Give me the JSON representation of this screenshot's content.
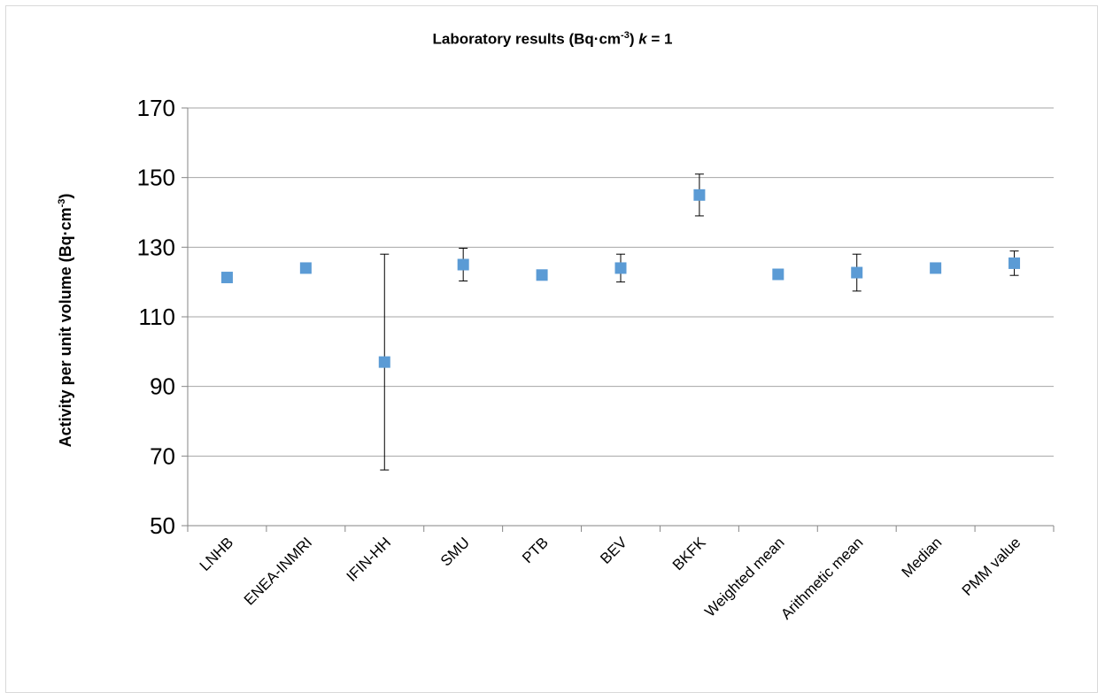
{
  "chart_data": {
    "type": "scatter",
    "title_main": "Laboratory results (Bq·cm",
    "title_sup": "-3",
    "title_after": ")  ",
    "title_k": "k",
    "title_end": " = 1",
    "ylabel_main": "Activity  per unit volume  (Bq·cm",
    "ylabel_sup": "-3",
    "ylabel_end": ")",
    "ylim": [
      50,
      170
    ],
    "yticks": [
      50,
      70,
      90,
      110,
      130,
      150,
      170
    ],
    "grid": true,
    "marker_color": "#5b9bd5",
    "categories": [
      "LNHB",
      "ENEA-INMRI",
      "IFIN-HH",
      "SMU",
      "PTB",
      "BEV",
      "BKFK",
      "Weighted mean",
      "Arithmetic mean",
      "Median",
      "PMM value"
    ],
    "values": [
      121.3,
      124.0,
      97.0,
      125.0,
      122.0,
      124.0,
      145.0,
      122.2,
      122.7,
      124.0,
      125.4
    ],
    "errors": [
      0.5,
      0.5,
      31.0,
      4.7,
      0.5,
      4.0,
      6.0,
      0.5,
      5.3,
      0.5,
      3.5
    ]
  }
}
